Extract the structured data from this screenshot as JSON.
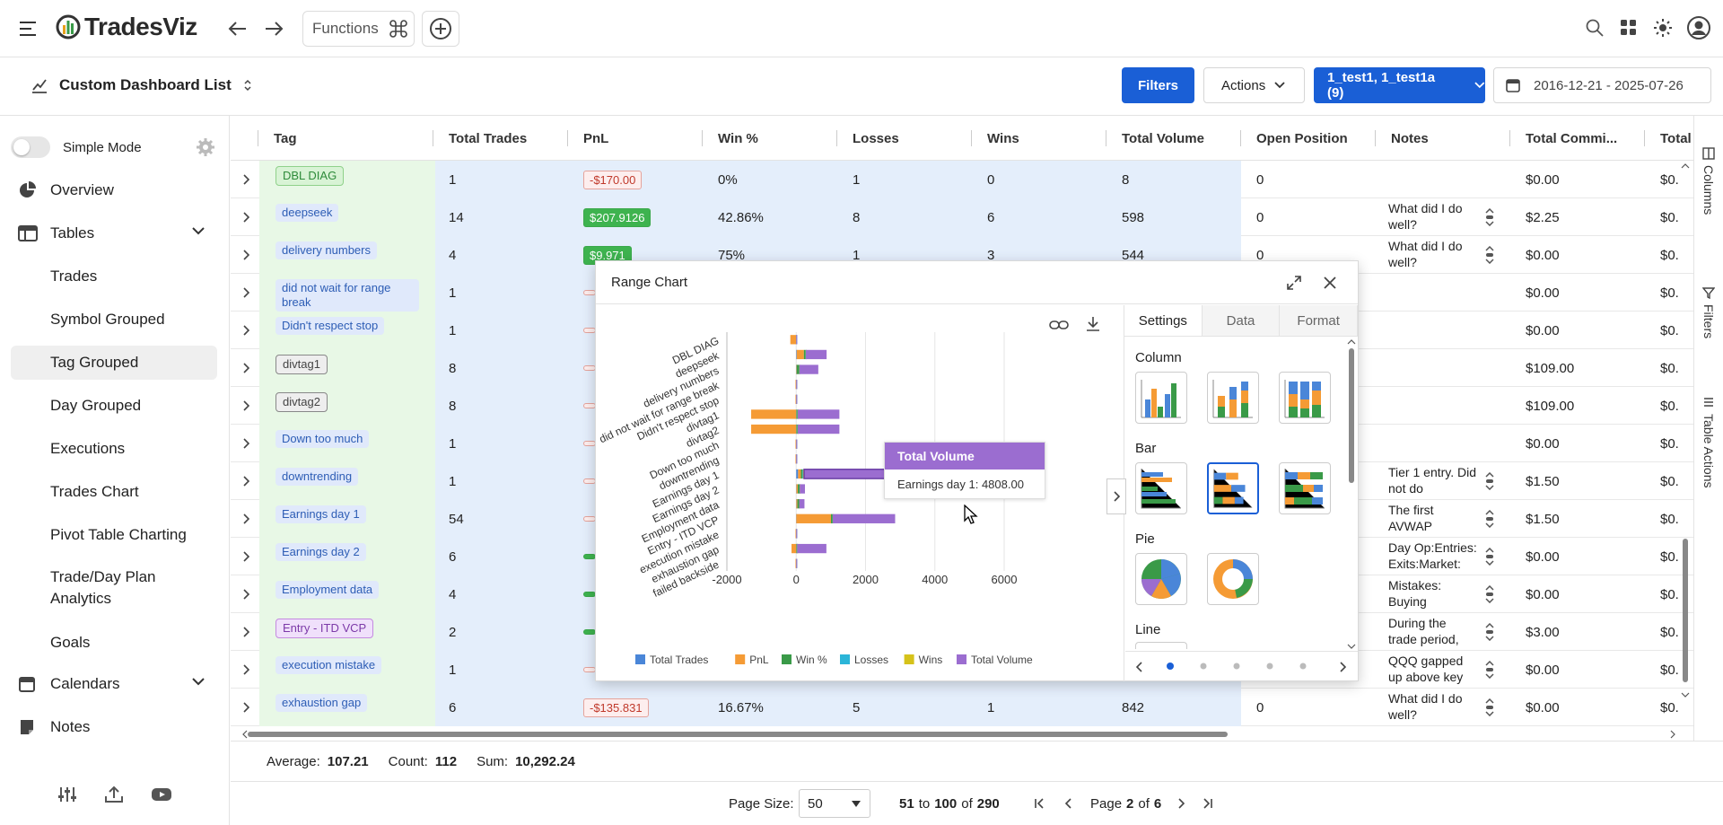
{
  "app": {
    "name": "TradesViz",
    "functions_label": "Functions"
  },
  "header": {
    "dashboard_title": "Custom Dashboard List",
    "filters_label": "Filters",
    "actions_label": "Actions",
    "account_label": "1_test1, 1_test1a (9)",
    "date_range": "2016-12-21 - 2025-07-26"
  },
  "sidebar": {
    "simple_mode": "Simple Mode",
    "overview": "Overview",
    "tables": "Tables",
    "items": [
      "Trades",
      "Symbol Grouped",
      "Tag Grouped",
      "Day Grouped",
      "Executions",
      "Trades Chart",
      "Pivot Table Charting",
      "Trade/Day Plan Analytics",
      "Goals"
    ],
    "calendars": "Calendars",
    "notes": "Notes"
  },
  "table": {
    "columns": [
      "Tag",
      "Total Trades",
      "PnL",
      "Win %",
      "Losses",
      "Wins",
      "Total Volume",
      "Open Position",
      "Notes",
      "Total Commi...",
      "Total"
    ],
    "rows": [
      {
        "tag": "DBL DIAG",
        "tag_style": "green",
        "trades": "1",
        "pnl": "-$170.00",
        "pnl_sign": "neg",
        "win": "0%",
        "losses": "1",
        "wins": "0",
        "volume": "8",
        "open": "0",
        "note": "",
        "comm": "$0.00",
        "total": "$0."
      },
      {
        "tag": "deepseek",
        "tag_style": "blue",
        "trades": "14",
        "pnl": "$207.9126",
        "pnl_sign": "pos",
        "win": "42.86%",
        "losses": "8",
        "wins": "6",
        "volume": "598",
        "open": "0",
        "note": "What did I do well?",
        "comm": "$2.25",
        "total": "$0."
      },
      {
        "tag": "delivery numbers",
        "tag_style": "blue",
        "trades": "4",
        "pnl": "$9.971",
        "pnl_sign": "pos",
        "win": "75%",
        "losses": "1",
        "wins": "3",
        "volume": "544",
        "open": "0",
        "note": "What did I do well?",
        "comm": "$0.00",
        "total": "$0."
      },
      {
        "tag": "did not wait for range break",
        "tag_style": "blue",
        "trades": "1",
        "pnl": "",
        "pnl_sign": "neg",
        "win": "",
        "losses": "",
        "wins": "",
        "volume": "",
        "open": "",
        "note": "",
        "comm": "$0.00",
        "total": "$0."
      },
      {
        "tag": "Didn't respect stop",
        "tag_style": "blue",
        "trades": "1",
        "pnl": "",
        "pnl_sign": "neg",
        "win": "",
        "losses": "",
        "wins": "",
        "volume": "",
        "open": "",
        "note": "",
        "comm": "$0.00",
        "total": "$0."
      },
      {
        "tag": "divtag1",
        "tag_style": "gray",
        "trades": "8",
        "pnl": "",
        "pnl_sign": "neg",
        "win": "",
        "losses": "",
        "wins": "",
        "volume": "",
        "open": "",
        "note": "",
        "comm": "$109.00",
        "total": "$0."
      },
      {
        "tag": "divtag2",
        "tag_style": "gray",
        "trades": "8",
        "pnl": "",
        "pnl_sign": "neg",
        "win": "",
        "losses": "",
        "wins": "",
        "volume": "",
        "open": "",
        "note": "",
        "comm": "$109.00",
        "total": "$0."
      },
      {
        "tag": "Down too much",
        "tag_style": "blue",
        "trades": "1",
        "pnl": "",
        "pnl_sign": "neg",
        "win": "",
        "losses": "",
        "wins": "",
        "volume": "",
        "open": "",
        "note": "",
        "comm": "$0.00",
        "total": "$0."
      },
      {
        "tag": "downtrending",
        "tag_style": "blue",
        "trades": "1",
        "pnl": "",
        "pnl_sign": "neg",
        "win": "",
        "losses": "",
        "wins": "",
        "volume": "",
        "open": "",
        "note": "Tier 1 entry. Did not do",
        "comm": "$1.50",
        "total": "$0."
      },
      {
        "tag": "Earnings day 1",
        "tag_style": "blue",
        "trades": "54",
        "pnl": "",
        "pnl_sign": "neg",
        "win": "",
        "losses": "",
        "wins": "",
        "volume": "",
        "open": "",
        "note": "The first AVWAP",
        "comm": "$1.50",
        "total": "$0."
      },
      {
        "tag": "Earnings day 2",
        "tag_style": "blue",
        "trades": "6",
        "pnl": "",
        "pnl_sign": "pos",
        "win": "",
        "losses": "",
        "wins": "",
        "volume": "",
        "open": "",
        "note": "Day Op:Entries: Exits:Market:",
        "comm": "$0.00",
        "total": "$0."
      },
      {
        "tag": "Employment data",
        "tag_style": "blue",
        "trades": "4",
        "pnl": "",
        "pnl_sign": "pos",
        "win": "",
        "losses": "",
        "wins": "",
        "volume": "",
        "open": "",
        "note": "Mistakes: Buying",
        "comm": "$0.00",
        "total": "$0."
      },
      {
        "tag": "Entry - ITD VCP",
        "tag_style": "purple",
        "trades": "2",
        "pnl": "",
        "pnl_sign": "pos",
        "win": "",
        "losses": "",
        "wins": "",
        "volume": "",
        "open": "",
        "note": "During the trade period,",
        "comm": "$3.00",
        "total": "$0."
      },
      {
        "tag": "execution mistake",
        "tag_style": "blue",
        "trades": "1",
        "pnl": "",
        "pnl_sign": "neg",
        "win": "",
        "losses": "",
        "wins": "",
        "volume": "",
        "open": "",
        "note": "QQQ gapped up above key",
        "comm": "$0.00",
        "total": "$0."
      },
      {
        "tag": "exhaustion gap",
        "tag_style": "blue",
        "trades": "6",
        "pnl": "-$135.831",
        "pnl_sign": "neg",
        "win": "16.67%",
        "losses": "5",
        "wins": "1",
        "volume": "842",
        "open": "0",
        "note": "What did I do well?",
        "comm": "$0.00",
        "total": "$0."
      }
    ]
  },
  "status": {
    "avg_label": "Average:",
    "avg": "107.21",
    "count_label": "Count:",
    "count": "112",
    "sum_label": "Sum:",
    "sum": "10,292.24"
  },
  "pager": {
    "size_label": "Page Size:",
    "size": "50",
    "from": "51",
    "to_word": "to",
    "to": "100",
    "of_word": "of",
    "total": "290",
    "page_word": "Page",
    "page": "2",
    "pages": "6"
  },
  "side_tabs": [
    "Columns",
    "Filters",
    "Table Actions"
  ],
  "popup": {
    "title": "Range Chart",
    "tabs": [
      "Settings",
      "Data",
      "Format"
    ],
    "sections": [
      "Column",
      "Bar",
      "Pie",
      "Line"
    ],
    "tooltip_title": "Total Volume",
    "tooltip_text": "Earnings day 1: 4808.00"
  },
  "chart_data": {
    "type": "bar",
    "orientation": "horizontal",
    "stacked": true,
    "categories": [
      "DBL DIAG",
      "deepseek",
      "delivery numbers",
      "did not wait for range break",
      "Didn't respect stop",
      "divtag1",
      "divtag2",
      "Down too much",
      "downtrending",
      "Earnings day 1",
      "Earnings day 2",
      "Employment data",
      "Entry - ITD VCP",
      "execution mistake",
      "exhaustion gap",
      "failed backside"
    ],
    "series": [
      {
        "name": "Total Trades",
        "color": "#4a86d8",
        "values": [
          1,
          14,
          4,
          1,
          1,
          8,
          8,
          1,
          1,
          54,
          6,
          4,
          2,
          1,
          6,
          1
        ]
      },
      {
        "name": "PnL",
        "color": "#f59b35",
        "values": [
          -170,
          207.9126,
          9.971,
          -20,
          -20,
          -1300,
          -1300,
          -20,
          -20,
          80,
          40,
          30,
          1000,
          -20,
          -135.831,
          -20
        ]
      },
      {
        "name": "Win %",
        "color": "#3a9a48",
        "values": [
          0,
          42.86,
          75,
          0,
          0,
          30,
          30,
          0,
          0,
          40,
          50,
          50,
          50,
          0,
          16.67,
          0
        ]
      },
      {
        "name": "Losses",
        "color": "#2bb5d8",
        "values": [
          1,
          8,
          1,
          1,
          1,
          4,
          4,
          1,
          1,
          20,
          2,
          2,
          1,
          1,
          5,
          1
        ]
      },
      {
        "name": "Wins",
        "color": "#d6c21a",
        "values": [
          0,
          6,
          3,
          0,
          0,
          4,
          4,
          0,
          0,
          34,
          4,
          2,
          1,
          0,
          1,
          0
        ]
      },
      {
        "name": "Total Volume",
        "color": "#9b6dd0",
        "values": [
          8,
          598,
          544,
          10,
          10,
          1200,
          1200,
          10,
          10,
          4808,
          150,
          150,
          1800,
          10,
          842,
          10
        ]
      }
    ],
    "xticks": [
      "-2000",
      "0",
      "2000",
      "4000",
      "6000"
    ],
    "xlim": [
      -2000,
      6000
    ],
    "legend": "bottom"
  }
}
